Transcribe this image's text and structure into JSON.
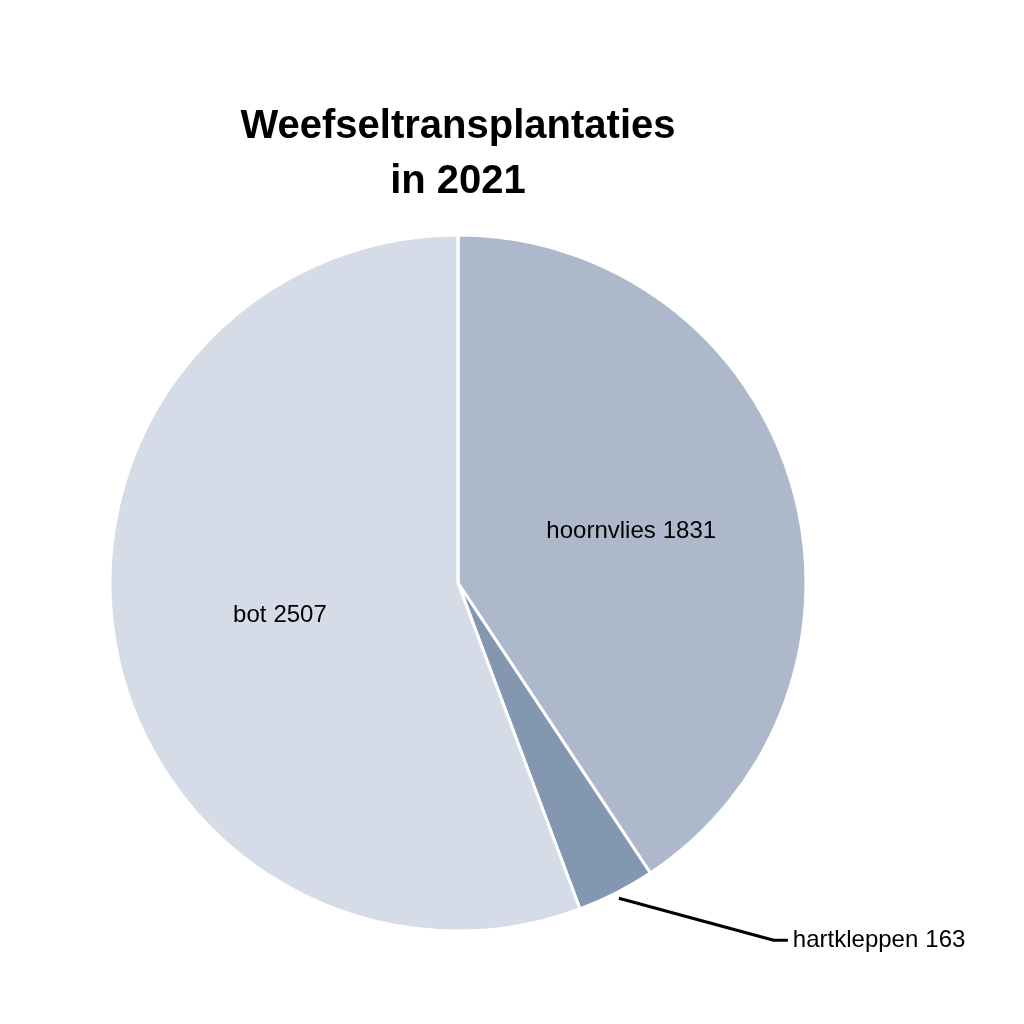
{
  "chart_data": {
    "type": "pie",
    "title": "Weefseltransplantaties in 2021",
    "categories": [
      "hoornvlies",
      "hartkleppen",
      "bot"
    ],
    "values": [
      1831,
      163,
      2507
    ],
    "colors": [
      "#adb8ca",
      "#8398b0",
      "#d5dce7"
    ],
    "data_labels": true,
    "legend": false
  }
}
